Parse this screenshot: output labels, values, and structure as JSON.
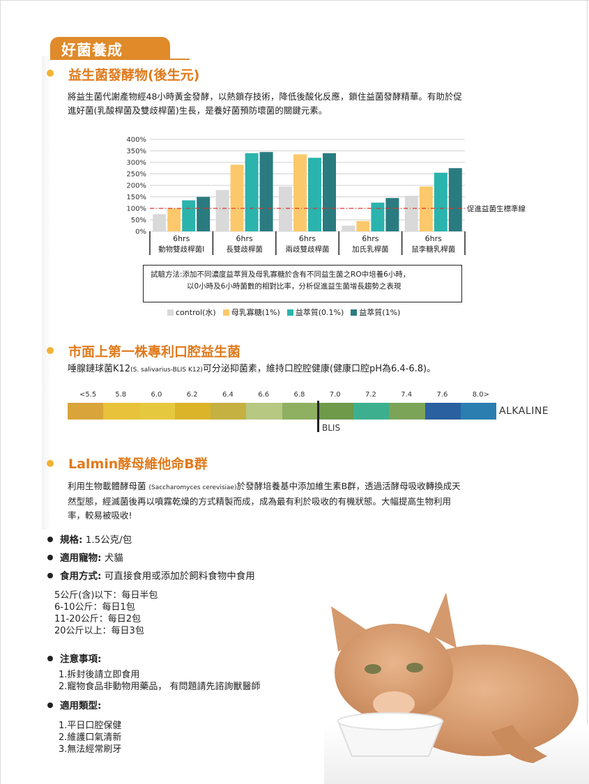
{
  "tab_title": "好菌養成",
  "section1": {
    "heading": "益生菌發酵物(後生元)",
    "para_line1": "將益生菌代謝產物經48小時黃金發酵，以熱鎖存技術，降低後酸化反應，鎖住益菌發酵精華。有助於促",
    "para_line2": "進好菌(乳酸桿菌及雙歧桿菌)生長，是養好菌預防壞菌的關鍵元素。"
  },
  "chart_data": {
    "type": "bar",
    "y_ticks": [
      "400%",
      "350%",
      "300%",
      "250%",
      "200%",
      "150%",
      "100%",
      "50%",
      "0%"
    ],
    "ylim": [
      0,
      400
    ],
    "group_time": "6hrs",
    "categories": [
      "動物雙歧桿菌I",
      "長雙歧桿菌",
      "兩歧雙歧桿菌",
      "加氏乳桿菌",
      "鼠李糖乳桿菌"
    ],
    "series": [
      {
        "name": "control(水)",
        "color": "#d9d9d9",
        "values": [
          75,
          180,
          195,
          25,
          155
        ]
      },
      {
        "name": "母乳寡糖(1%)",
        "color": "#fbc96c",
        "values": [
          100,
          290,
          335,
          45,
          195
        ]
      },
      {
        "name": "益萃質(0.1%)",
        "color": "#2bb3ad",
        "values": [
          135,
          340,
          320,
          125,
          255
        ]
      },
      {
        "name": "益萃質(1%)",
        "color": "#2a7b80",
        "values": [
          150,
          345,
          340,
          145,
          275
        ]
      }
    ],
    "reference_line": {
      "value": 100,
      "label": "促進益菌生標準線",
      "color": "#e0322a"
    }
  },
  "method": {
    "line1": "試驗方法:添加不同濃度益萃質及母乳寡糖於含有不同益生菌之RO中培養6小時，",
    "line2": "以0小時及6小時菌數的相對比率，分析促進益生菌增長趨勢之表現"
  },
  "section2": {
    "heading": "市面上第一株專利口腔益生菌",
    "text_a": "唾腺鏈球菌K12",
    "text_b": "(S. salivarius-BLIS K12)",
    "text_c": "可分泌抑菌素，維持口腔腔健康(健康口腔pH為6.4-6.8)。"
  },
  "ph_scale": {
    "ticks": [
      "<5.5",
      "5.8",
      "6.0",
      "6.2",
      "6.4",
      "6.6",
      "6.8",
      "7.0",
      "7.2",
      "7.4",
      "7.6",
      "8.0>"
    ],
    "colors": [
      "#d9a43a",
      "#e8c23a",
      "#e6c83f",
      "#dcb42a",
      "#c5b042",
      "#b6c882",
      "#8fb060",
      "#6e9a4a",
      "#3cb08e",
      "#7ba458",
      "#2a5fa0",
      "#2a7eb0"
    ],
    "blis_label": "BLIS",
    "alkaline_label": "ALKALINE"
  },
  "section3": {
    "heading": "Lalmin酵母維他命B群",
    "line1_a": "利用生物載體酵母菌 ",
    "line1_b": "(Saccharomyces cerevisiae)",
    "line1_c": "於發酵培養基中添加維生素B群，透過活酵母吸收轉換成天",
    "line2": "然型態，經滅菌後再以噴霧乾燥的方式精製而成，成為最有利於吸收的有機狀態。大幅提高生物利用",
    "line3": "率，較易被吸收!"
  },
  "specs": {
    "size_label": "規格:",
    "size_value": " 1.5公克/包",
    "pet_label": "適用寵物:",
    "pet_value": " 犬貓",
    "usage_label": "食用方式:",
    "usage_value": " 可直接食用或添加於飼料食物中食用",
    "dosage": [
      "5公斤(含)以下：每日半包",
      "6-10公斤：每日1包",
      "11-20公斤：每日2包",
      "20公斤以上：每日3包"
    ],
    "notes_label": "注意事項:",
    "notes": [
      "1.拆封後請立即食用",
      "2.寵物食品非動物用藥品， 有問題請先諮詢獸醫師"
    ],
    "type_label": "適用類型:",
    "types": [
      "1.平日口腔保健",
      "2.維護口氣清新",
      "3.無法經常刷牙"
    ]
  }
}
